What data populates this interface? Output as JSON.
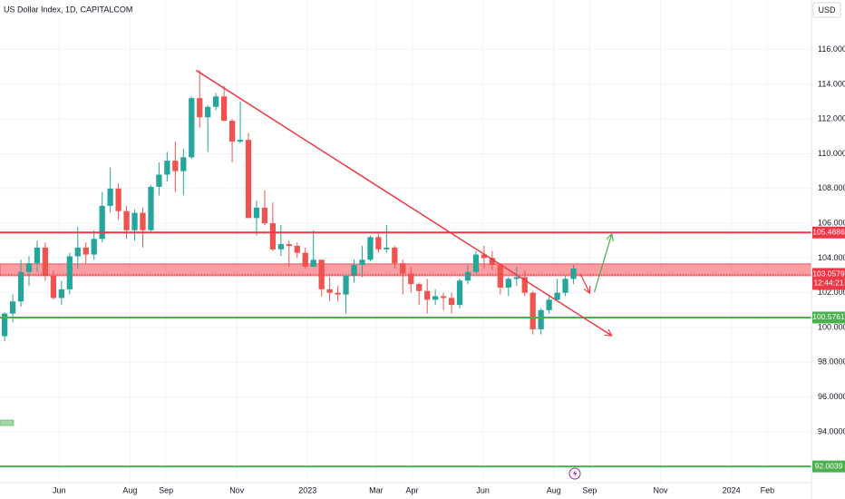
{
  "chart_data": {
    "type": "candlestick",
    "title": "US Dollar Index, 1D, CAPITALCOM",
    "currency": "USD",
    "xlim": [
      "2022-04-11",
      "2024-03-10"
    ],
    "ylim": [
      91.07,
      118.85
    ],
    "xticks": [
      {
        "value": "2022-06-01",
        "label": "Jun"
      },
      {
        "value": "2022-08-01",
        "label": "Aug"
      },
      {
        "value": "2022-09-01",
        "label": "Sep"
      },
      {
        "value": "2022-11-01",
        "label": "Nov"
      },
      {
        "value": "2023-01-01",
        "label": "2023"
      },
      {
        "value": "2023-03-01",
        "label": "Mar"
      },
      {
        "value": "2023-04-01",
        "label": "Apr"
      },
      {
        "value": "2023-06-01",
        "label": "Jun"
      },
      {
        "value": "2023-08-01",
        "label": "Aug"
      },
      {
        "value": "2023-09-01",
        "label": "Sep"
      },
      {
        "value": "2023-11-01",
        "label": "Nov"
      },
      {
        "value": "2024-01-01",
        "label": "2024"
      },
      {
        "value": "2024-02-01",
        "label": "Feb"
      }
    ],
    "yticks": [
      {
        "value": 92,
        "label": "92.0000"
      },
      {
        "value": 94,
        "label": "94.0000"
      },
      {
        "value": 96,
        "label": "96.0000"
      },
      {
        "value": 98,
        "label": "98.0000"
      },
      {
        "value": 100,
        "label": "100.0000"
      },
      {
        "value": 102,
        "label": "102.0000"
      },
      {
        "value": 104,
        "label": "104.0000"
      },
      {
        "value": 106,
        "label": "106.0000"
      },
      {
        "value": 108,
        "label": "108.0000"
      },
      {
        "value": 110,
        "label": "110.0000"
      },
      {
        "value": 112,
        "label": "112.0000"
      },
      {
        "value": 114,
        "label": "114.0000"
      },
      {
        "value": 116,
        "label": "116.0000"
      }
    ],
    "grid": true,
    "up_color": "#26a69a",
    "down_color": "#ef5350",
    "x": [
      "2022-04-15",
      "2022-04-22",
      "2022-04-29",
      "2022-05-06",
      "2022-05-13",
      "2022-05-20",
      "2022-05-27",
      "2022-06-03",
      "2022-06-10",
      "2022-06-17",
      "2022-06-24",
      "2022-07-01",
      "2022-07-08",
      "2022-07-15",
      "2022-07-22",
      "2022-07-29",
      "2022-08-05",
      "2022-08-12",
      "2022-08-19",
      "2022-08-26",
      "2022-09-02",
      "2022-09-09",
      "2022-09-16",
      "2022-09-23",
      "2022-09-30",
      "2022-10-07",
      "2022-10-14",
      "2022-10-21",
      "2022-10-28",
      "2022-11-04",
      "2022-11-11",
      "2022-11-18",
      "2022-11-25",
      "2022-12-02",
      "2022-12-09",
      "2022-12-16",
      "2022-12-23",
      "2022-12-30",
      "2023-01-06",
      "2023-01-13",
      "2023-01-20",
      "2023-01-27",
      "2023-02-03",
      "2023-02-10",
      "2023-02-17",
      "2023-02-24",
      "2023-03-03",
      "2023-03-10",
      "2023-03-17",
      "2023-03-24",
      "2023-03-31",
      "2023-04-07",
      "2023-04-14",
      "2023-04-21",
      "2023-04-28",
      "2023-05-05",
      "2023-05-12",
      "2023-05-19",
      "2023-05-26",
      "2023-06-02",
      "2023-06-09",
      "2023-06-16",
      "2023-06-23",
      "2023-06-30",
      "2023-07-07",
      "2023-07-14",
      "2023-07-21",
      "2023-07-28",
      "2023-08-04",
      "2023-08-11",
      "2023-08-18"
    ],
    "open": [
      99.5,
      100.8,
      101.5,
      103.2,
      103.7,
      104.6,
      103.0,
      101.7,
      102.2,
      104.1,
      104.6,
      104.2,
      105.1,
      107.0,
      108.0,
      106.7,
      105.6,
      106.6,
      105.6,
      108.1,
      108.8,
      109.6,
      109.0,
      109.8,
      113.2,
      112.1,
      112.7,
      113.3,
      111.9,
      110.7,
      110.8,
      106.3,
      106.9,
      106.0,
      104.5,
      104.8,
      104.7,
      104.3,
      103.5,
      103.9,
      102.2,
      102.0,
      101.9,
      103.0,
      103.6,
      103.9,
      105.2,
      104.5,
      104.6,
      103.7,
      103.1,
      102.5,
      102.1,
      101.6,
      101.8,
      101.7,
      101.3,
      102.7,
      103.2,
      104.2,
      104.0,
      103.6,
      102.3,
      102.8,
      102.9,
      102.0,
      99.9,
      101.0,
      101.6,
      102.0,
      102.8
    ],
    "high": [
      100.9,
      101.9,
      103.9,
      104.1,
      105.0,
      104.9,
      103.3,
      102.7,
      104.3,
      105.8,
      104.9,
      105.6,
      107.8,
      109.2,
      108.3,
      107.0,
      106.8,
      106.9,
      108.2,
      109.5,
      110.1,
      110.7,
      110.3,
      113.3,
      114.8,
      112.8,
      113.5,
      113.9,
      112.0,
      113.0,
      111.2,
      107.3,
      107.9,
      107.2,
      105.9,
      105.0,
      104.9,
      104.6,
      105.6,
      103.9,
      102.9,
      102.4,
      103.0,
      103.9,
      104.7,
      105.3,
      105.4,
      105.9,
      104.7,
      103.9,
      103.5,
      102.6,
      102.8,
      102.2,
      102.0,
      102.0,
      102.8,
      103.6,
      104.4,
      104.7,
      104.4,
      103.7,
      102.9,
      103.5,
      103.3,
      102.1,
      101.1,
      101.9,
      102.8,
      103.0,
      103.6
    ],
    "low": [
      99.2,
      100.3,
      101.2,
      102.4,
      103.2,
      102.7,
      101.6,
      101.3,
      101.9,
      103.4,
      103.7,
      103.9,
      104.9,
      106.6,
      106.2,
      105.1,
      105.0,
      104.6,
      105.5,
      107.6,
      108.4,
      107.8,
      107.6,
      109.7,
      111.5,
      110.1,
      112.5,
      111.9,
      109.5,
      110.6,
      106.3,
      105.3,
      105.9,
      104.4,
      104.1,
      103.5,
      104.0,
      103.4,
      103.5,
      101.8,
      101.5,
      101.5,
      100.8,
      102.6,
      102.9,
      103.8,
      104.3,
      104.3,
      103.4,
      101.9,
      102.0,
      101.3,
      100.8,
      101.3,
      101.0,
      100.8,
      101.1,
      102.5,
      103.1,
      103.4,
      103.3,
      101.9,
      101.8,
      102.4,
      101.8,
      99.6,
      99.6,
      100.8,
      101.5,
      101.8,
      102.5
    ],
    "close": [
      100.8,
      101.5,
      103.2,
      103.7,
      104.6,
      103.0,
      101.7,
      102.2,
      104.1,
      104.6,
      104.2,
      105.1,
      107.0,
      108.0,
      106.7,
      105.6,
      106.6,
      105.6,
      108.1,
      108.8,
      109.6,
      109.0,
      109.8,
      113.2,
      112.1,
      112.7,
      113.3,
      111.9,
      110.7,
      110.8,
      106.3,
      106.9,
      106.0,
      104.5,
      104.8,
      104.7,
      104.3,
      103.5,
      103.9,
      102.2,
      102.0,
      101.9,
      103.0,
      103.6,
      103.9,
      105.2,
      104.5,
      104.6,
      103.7,
      103.1,
      102.5,
      102.1,
      101.6,
      101.8,
      101.7,
      101.3,
      102.7,
      103.2,
      104.2,
      104.0,
      103.6,
      102.3,
      102.8,
      102.9,
      102.0,
      99.9,
      101.0,
      101.6,
      102.0,
      102.8,
      103.4
    ],
    "levels": [
      {
        "value": 105.4686,
        "color": "#f23645"
      },
      {
        "value": 100.5761,
        "color": "#4caf50"
      },
      {
        "value": 92.0039,
        "color": "#4caf50"
      }
    ],
    "zone": {
      "from": 102.98,
      "to": 103.66,
      "color": "#f77c80"
    },
    "last_price": 103.0579,
    "countdown": "12:44:21",
    "trendline": {
      "x": [
        "2022-09-27",
        "2023-09-20"
      ],
      "y": [
        114.8,
        99.53
      ],
      "color": "#f23645"
    },
    "arrows": [
      {
        "x": [
          "2023-08-24",
          "2023-09-01"
        ],
        "y": [
          103.08,
          101.98
        ],
        "color": "#f23645"
      },
      {
        "x": [
          "2023-09-05",
          "2023-09-20"
        ],
        "y": [
          102.04,
          105.38
        ],
        "color": "#4caf50"
      }
    ]
  }
}
